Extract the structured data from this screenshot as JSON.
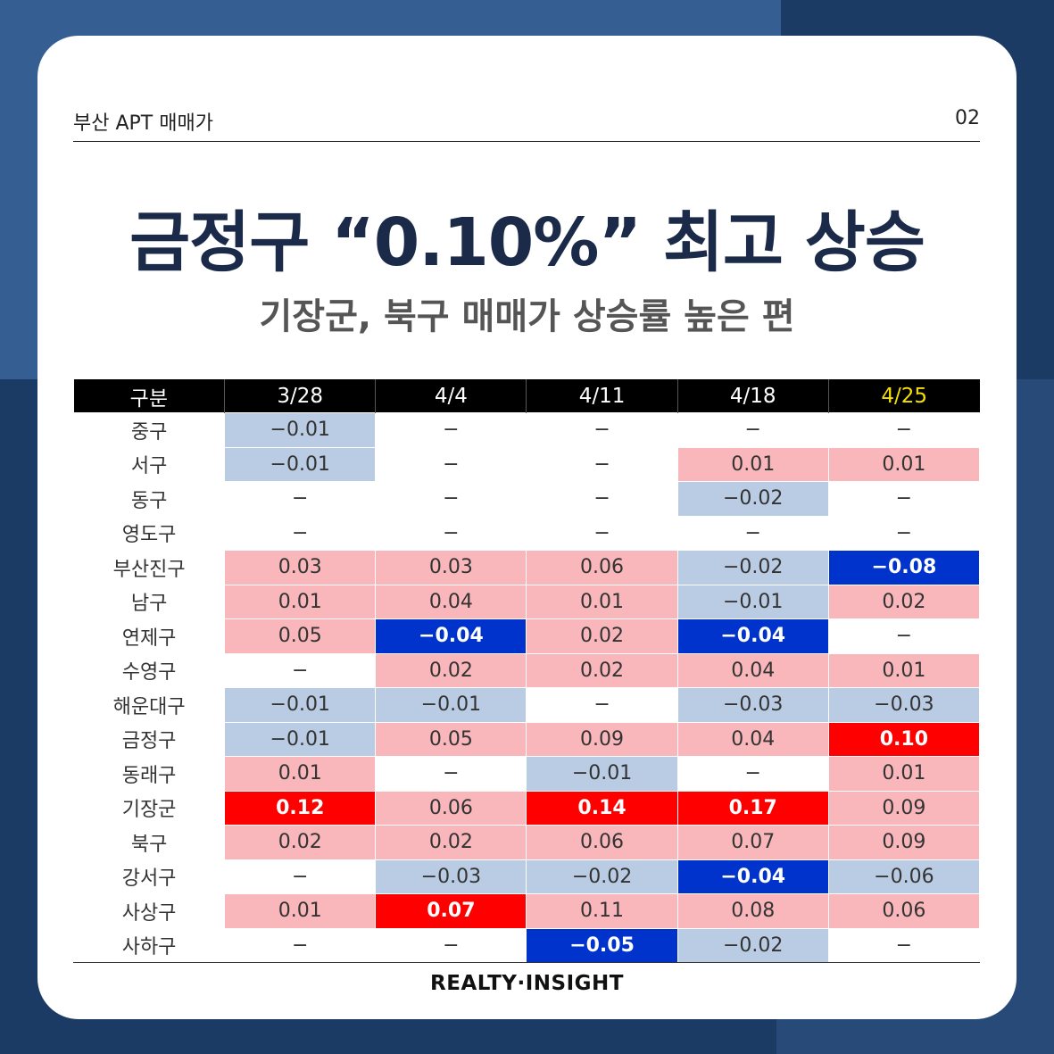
{
  "header": {
    "label": "부산 APT 매매가",
    "page": "02"
  },
  "title": "금정구 “0.10%” 최고 상승",
  "subtitle": "기장군, 북구 매매가 상승률 높은 편",
  "footer": "REALTY·INSIGHT",
  "colors": {
    "positive": "#f9b7bb",
    "negative": "#b9cce3",
    "strong_positive": "#ff0000",
    "strong_negative": "#0033cc",
    "highlight_header": "#f4e000"
  },
  "chart_data": {
    "type": "table",
    "corner_label": "구분",
    "columns": [
      "3/28",
      "4/4",
      "4/11",
      "4/18",
      "4/25"
    ],
    "highlight_column": "4/25",
    "rows": [
      {
        "name": "중구",
        "values": [
          -0.01,
          null,
          null,
          null,
          null
        ],
        "display": [
          "−0.01",
          "−",
          "−",
          "−",
          "−"
        ],
        "strong": [
          false,
          false,
          false,
          false,
          false
        ]
      },
      {
        "name": "서구",
        "values": [
          -0.01,
          null,
          null,
          0.01,
          0.01
        ],
        "display": [
          "−0.01",
          "−",
          "−",
          "0.01",
          "0.01"
        ],
        "strong": [
          false,
          false,
          false,
          false,
          false
        ]
      },
      {
        "name": "동구",
        "values": [
          null,
          null,
          null,
          -0.02,
          null
        ],
        "display": [
          "−",
          "−",
          "−",
          "−0.02",
          "−"
        ],
        "strong": [
          false,
          false,
          false,
          false,
          false
        ]
      },
      {
        "name": "영도구",
        "values": [
          null,
          null,
          null,
          null,
          null
        ],
        "display": [
          "−",
          "−",
          "−",
          "−",
          "−"
        ],
        "strong": [
          false,
          false,
          false,
          false,
          false
        ]
      },
      {
        "name": "부산진구",
        "values": [
          0.03,
          0.03,
          0.06,
          -0.02,
          -0.08
        ],
        "display": [
          "0.03",
          "0.03",
          "0.06",
          "−0.02",
          "−0.08"
        ],
        "strong": [
          false,
          false,
          false,
          false,
          true
        ]
      },
      {
        "name": "남구",
        "values": [
          0.01,
          0.04,
          0.01,
          -0.01,
          0.02
        ],
        "display": [
          "0.01",
          "0.04",
          "0.01",
          "−0.01",
          "0.02"
        ],
        "strong": [
          false,
          false,
          false,
          false,
          false
        ]
      },
      {
        "name": "연제구",
        "values": [
          0.05,
          -0.04,
          0.02,
          -0.04,
          null
        ],
        "display": [
          "0.05",
          "−0.04",
          "0.02",
          "−0.04",
          "−"
        ],
        "strong": [
          false,
          true,
          false,
          true,
          false
        ]
      },
      {
        "name": "수영구",
        "values": [
          null,
          0.02,
          0.02,
          0.04,
          0.01
        ],
        "display": [
          "−",
          "0.02",
          "0.02",
          "0.04",
          "0.01"
        ],
        "strong": [
          false,
          false,
          false,
          false,
          false
        ]
      },
      {
        "name": "해운대구",
        "values": [
          -0.01,
          -0.01,
          null,
          -0.03,
          -0.03
        ],
        "display": [
          "−0.01",
          "−0.01",
          "−",
          "−0.03",
          "−0.03"
        ],
        "strong": [
          false,
          false,
          false,
          false,
          false
        ]
      },
      {
        "name": "금정구",
        "values": [
          -0.01,
          0.05,
          0.09,
          0.04,
          0.1
        ],
        "display": [
          "−0.01",
          "0.05",
          "0.09",
          "0.04",
          "0.10"
        ],
        "strong": [
          false,
          false,
          false,
          false,
          true
        ]
      },
      {
        "name": "동래구",
        "values": [
          0.01,
          null,
          -0.01,
          null,
          0.01
        ],
        "display": [
          "0.01",
          "−",
          "−0.01",
          "−",
          "0.01"
        ],
        "strong": [
          false,
          false,
          false,
          false,
          false
        ]
      },
      {
        "name": "기장군",
        "values": [
          0.12,
          0.06,
          0.14,
          0.17,
          0.09
        ],
        "display": [
          "0.12",
          "0.06",
          "0.14",
          "0.17",
          "0.09"
        ],
        "strong": [
          true,
          false,
          true,
          true,
          false
        ]
      },
      {
        "name": "북구",
        "values": [
          0.02,
          0.02,
          0.06,
          0.07,
          0.09
        ],
        "display": [
          "0.02",
          "0.02",
          "0.06",
          "0.07",
          "0.09"
        ],
        "strong": [
          false,
          false,
          false,
          false,
          false
        ]
      },
      {
        "name": "강서구",
        "values": [
          null,
          -0.03,
          -0.02,
          -0.04,
          -0.06
        ],
        "display": [
          "−",
          "−0.03",
          "−0.02",
          "−0.04",
          "−0.06"
        ],
        "strong": [
          false,
          false,
          false,
          true,
          false
        ]
      },
      {
        "name": "사상구",
        "values": [
          0.01,
          0.07,
          0.11,
          0.08,
          0.06
        ],
        "display": [
          "0.01",
          "0.07",
          "0.11",
          "0.08",
          "0.06"
        ],
        "strong": [
          false,
          true,
          false,
          false,
          false
        ]
      },
      {
        "name": "사하구",
        "values": [
          null,
          null,
          -0.05,
          -0.02,
          null
        ],
        "display": [
          "−",
          "−",
          "−0.05",
          "−0.02",
          "−"
        ],
        "strong": [
          false,
          false,
          true,
          false,
          false
        ]
      }
    ]
  }
}
